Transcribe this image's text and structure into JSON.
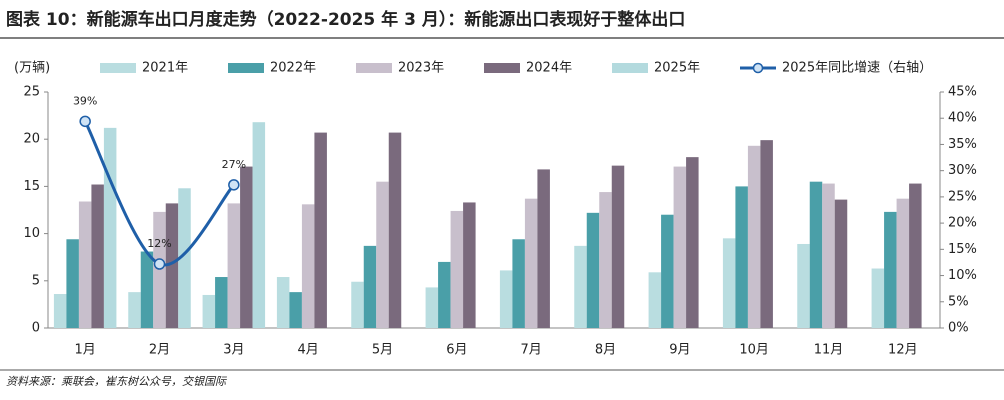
{
  "chart_data": {
    "type": "bar",
    "title": "图表 10：新能源车出口月度走势（2022-2025 年 3 月）：新能源出口表现好于整体出口",
    "y_axis_label": "(万辆)",
    "source": "资料来源：乘联会，崔东树公众号，交银国际",
    "categories": [
      "1月",
      "2月",
      "3月",
      "4月",
      "5月",
      "6月",
      "7月",
      "8月",
      "9月",
      "10月",
      "11月",
      "12月"
    ],
    "series": [
      {
        "name": "2021年",
        "color": "#b9dde0",
        "values": [
          3.6,
          3.8,
          3.5,
          5.4,
          4.9,
          4.3,
          6.1,
          8.7,
          5.9,
          9.5,
          8.9,
          6.3
        ]
      },
      {
        "name": "2022年",
        "color": "#4a9fa8",
        "values": [
          9.4,
          8.1,
          5.4,
          3.8,
          8.7,
          7.0,
          9.4,
          12.2,
          12.0,
          15.0,
          15.5,
          12.3
        ]
      },
      {
        "name": "2023年",
        "color": "#c8bfcc",
        "values": [
          13.4,
          12.3,
          13.2,
          13.1,
          15.5,
          12.4,
          13.7,
          14.4,
          17.1,
          19.3,
          15.3,
          13.7
        ]
      },
      {
        "name": "2024年",
        "color": "#7a6a7d",
        "values": [
          15.2,
          13.2,
          17.1,
          20.7,
          20.7,
          13.3,
          16.8,
          17.2,
          18.1,
          19.9,
          13.6,
          15.3
        ]
      },
      {
        "name": "2025年",
        "color": "#b3dade",
        "values": [
          21.2,
          14.8,
          21.8,
          null,
          null,
          null,
          null,
          null,
          null,
          null,
          null,
          null
        ]
      },
      {
        "name": "2025年同比增速（右轴）",
        "color": "#1f5fa8",
        "type": "line",
        "axis": "y2",
        "values": [
          39.4,
          12.2,
          27.3,
          null,
          null,
          null,
          null,
          null,
          null,
          null,
          null,
          null
        ],
        "value_labels": [
          "39%",
          "12%",
          "27%",
          null,
          null,
          null,
          null,
          null,
          null,
          null,
          null,
          null
        ]
      }
    ],
    "ylim": [
      0,
      25
    ],
    "yticks": [
      0,
      5,
      10,
      15,
      20,
      25
    ],
    "y2lim": [
      0,
      45
    ],
    "y2ticks": [
      {
        "value": 0,
        "label": "0%"
      },
      {
        "value": 5,
        "label": "5%"
      },
      {
        "value": 10,
        "label": "10%"
      },
      {
        "value": 15,
        "label": "15%"
      },
      {
        "value": 20,
        "label": "20%"
      },
      {
        "value": 25,
        "label": "25%"
      },
      {
        "value": 30,
        "label": "30%"
      },
      {
        "value": 35,
        "label": "35%"
      },
      {
        "value": 40,
        "label": "40%"
      },
      {
        "value": 45,
        "label": "45%"
      }
    ],
    "legend": "top"
  }
}
